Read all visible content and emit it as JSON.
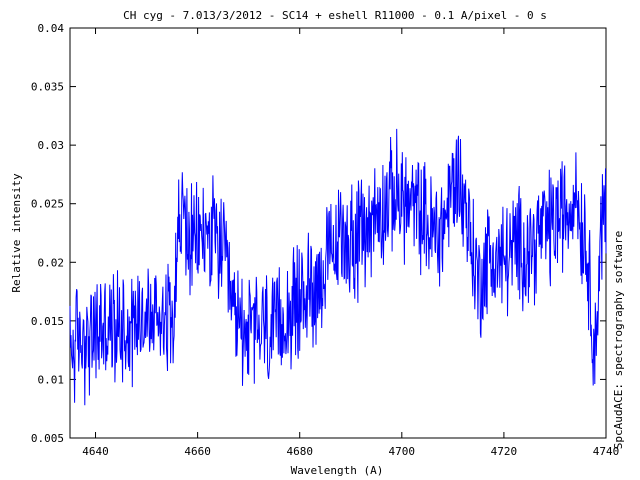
{
  "chart_data": {
    "type": "line",
    "title": "CH cyg - 7.013/3/2012 - SC14 + eshell R11000 - 0.1 A/pixel - 0 s",
    "xlabel": "Wavelength (A)",
    "ylabel": "Relative intensity",
    "side_label": "SpcAudACE: spectrography software",
    "xlim": [
      4635,
      4740
    ],
    "ylim": [
      0.005,
      0.04
    ],
    "xticks": [
      4640,
      4660,
      4680,
      4700,
      4720,
      4740
    ],
    "yticks": [
      0.005,
      0.01,
      0.015,
      0.02,
      0.025,
      0.03,
      0.035,
      0.04
    ],
    "xtick_labels": [
      "4640",
      "4660",
      "4680",
      "4700",
      "4720",
      "4740"
    ],
    "ytick_labels": [
      "0.005",
      "0.01",
      "0.015",
      "0.02",
      "0.025",
      "0.03",
      "0.035",
      "0.04"
    ],
    "grid": false,
    "line_color": "#0000ff",
    "series": [
      {
        "x": [
          4635,
          4637,
          4639,
          4641,
          4643,
          4645,
          4647,
          4649,
          4651,
          4653,
          4655,
          4656,
          4657,
          4658,
          4659,
          4661,
          4663,
          4665,
          4666,
          4667,
          4669,
          4671,
          4673,
          4675,
          4677,
          4679,
          4681,
          4683,
          4685,
          4687,
          4689,
          4691,
          4693,
          4695,
          4697,
          4699,
          4700,
          4702,
          4704,
          4706,
          4708,
          4710,
          4711,
          4713,
          4715,
          4717,
          4719,
          4721,
          4723,
          4725,
          4727,
          4729,
          4731,
          4733,
          4734,
          4735,
          4736,
          4737,
          4738,
          4739,
          4740
        ],
        "y": [
          0.0125,
          0.0135,
          0.013,
          0.0145,
          0.014,
          0.015,
          0.0145,
          0.016,
          0.015,
          0.016,
          0.0155,
          0.022,
          0.024,
          0.0225,
          0.021,
          0.0225,
          0.022,
          0.021,
          0.0175,
          0.0155,
          0.0145,
          0.014,
          0.0145,
          0.0135,
          0.0155,
          0.016,
          0.0175,
          0.018,
          0.0195,
          0.021,
          0.0225,
          0.0215,
          0.023,
          0.024,
          0.025,
          0.026,
          0.0255,
          0.0245,
          0.024,
          0.0225,
          0.023,
          0.0265,
          0.0275,
          0.0235,
          0.018,
          0.0205,
          0.02,
          0.0205,
          0.0215,
          0.021,
          0.0225,
          0.023,
          0.024,
          0.0245,
          0.027,
          0.0235,
          0.022,
          0.017,
          0.0125,
          0.023,
          0.024
        ]
      }
    ]
  }
}
